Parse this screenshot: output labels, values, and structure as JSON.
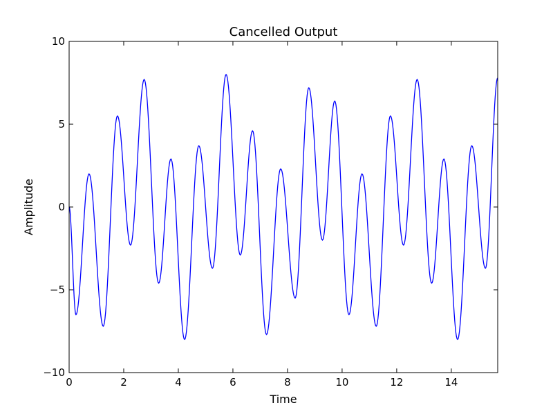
{
  "chart_data": {
    "type": "line",
    "title": "Cancelled Output",
    "xlabel": "Time",
    "ylabel": "Amplitude",
    "xlim": [
      0,
      15.7
    ],
    "ylim": [
      -10,
      10
    ],
    "grid": false,
    "legend": "none",
    "line_color": "#0000ff",
    "xticks": [
      0,
      2,
      4,
      6,
      8,
      10,
      12,
      14
    ],
    "xtick_labels": [
      "0",
      "2",
      "4",
      "6",
      "8",
      "10",
      "12",
      "14"
    ],
    "yticks": [
      -10,
      -5,
      0,
      5,
      10
    ],
    "ytick_labels": [
      "−10",
      "−5",
      "0",
      "5",
      "10"
    ],
    "series": [
      {
        "x": [
          0,
          0.25,
          0.73,
          1.25,
          1.77,
          2.25,
          2.75,
          3.28,
          3.73,
          4.23,
          4.75,
          5.25,
          5.75,
          6.27,
          6.72,
          7.23,
          7.75,
          8.28,
          8.78,
          9.28,
          9.73,
          10.25,
          10.73,
          11.25,
          11.77,
          12.25,
          12.75,
          13.28,
          13.73,
          14.23,
          14.75,
          15.25,
          15.7
        ],
        "y": [
          0,
          -6.5,
          2.0,
          -7.2,
          5.5,
          -2.3,
          7.7,
          -4.6,
          2.9,
          -8.0,
          3.7,
          -3.7,
          8.0,
          -2.9,
          4.6,
          -7.7,
          2.3,
          -5.5,
          7.2,
          -2.0,
          6.4,
          -6.5,
          2.0,
          -7.2,
          5.5,
          -2.3,
          7.7,
          -4.6,
          2.9,
          -8.0,
          3.7,
          -3.7,
          7.8
        ]
      }
    ]
  }
}
